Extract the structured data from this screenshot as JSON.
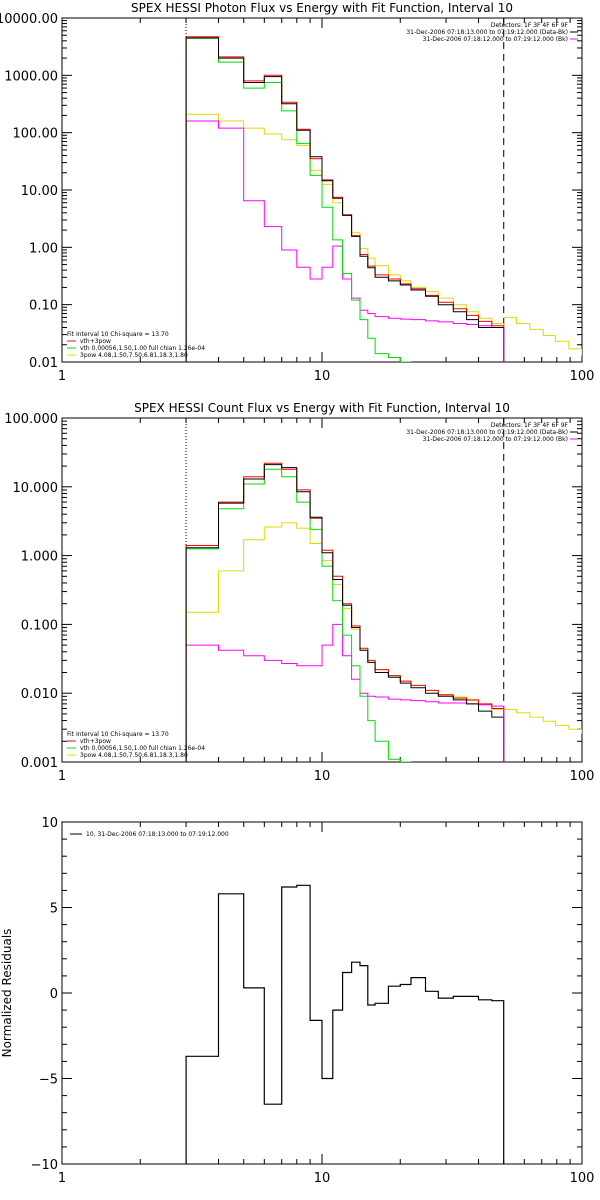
{
  "colors": {
    "data": "#000000",
    "total": "#ff0000",
    "vth": "#00dd00",
    "pow": "#dddd00",
    "bk": "#ff00ff",
    "axis": "#000000"
  },
  "chart_data": [
    {
      "type": "line",
      "title": "SPEX HESSI Photon Flux vs Energy with Fit Function, Interval 10",
      "xlabel": "",
      "ylabel": "",
      "xscale": "log",
      "yscale": "log",
      "xlim": [
        1,
        100
      ],
      "ylim": [
        0.01,
        10000
      ],
      "x_ticks": [
        "1",
        "10",
        "100"
      ],
      "y_ticks": [
        "0.01",
        "0.10",
        "1.00",
        "10.00",
        "100.00",
        "1000.00",
        "10000.00"
      ],
      "y_ticks_vals": [
        0.01,
        0.1,
        1,
        10,
        100,
        1000,
        10000
      ],
      "vlines": [
        {
          "x": 3.0,
          "style": "dotted"
        },
        {
          "x": 50,
          "style": "dashed"
        }
      ],
      "legend_top": [
        "Detectors: 1F 3F 4F 6F 9F",
        "31-Dec-2006 07:18:13.000 to 07:19:12.000 (Data-Bk)",
        "31-Dec-2006 07:18:12.000 to 07:19:12.000 (Bk)"
      ],
      "legend_top_colors": [
        "none",
        "#000000",
        "#ff00ff"
      ],
      "legend_bottom": [
        "Fit Interval 10   Chi-square = 13.70",
        "vth+3pow",
        "vth 0.00056,1.50,1.00  full chian 1.26e-04",
        "3pow 4.08,1.50,7.50,6.81,18.3,1.80"
      ],
      "legend_bottom_colors": [
        "none",
        "#ff0000",
        "#00dd00",
        "#dddd00"
      ],
      "edges": [
        3.0,
        4.0,
        5.0,
        6.0,
        7.0,
        8.0,
        9.0,
        10.0,
        11.0,
        12.0,
        13.0,
        14.0,
        15.0,
        16.0,
        18.0,
        20.0,
        22.0,
        25.0,
        28.0,
        32.0,
        36.0,
        40.0,
        45.0,
        50.0
      ],
      "series": [
        {
          "key": "total",
          "values": [
            4700,
            2100,
            800,
            1000,
            340,
            115,
            35,
            15,
            7.5,
            3.7,
            1.6,
            0.75,
            0.47,
            0.33,
            0.28,
            0.23,
            0.19,
            0.145,
            0.11,
            0.085,
            0.065,
            0.051,
            0.043
          ]
        },
        {
          "key": "data",
          "values": [
            4500,
            2000,
            750,
            950,
            320,
            110,
            38,
            14.5,
            7.2,
            3.6,
            1.55,
            0.7,
            0.44,
            0.3,
            0.26,
            0.22,
            0.18,
            0.14,
            0.1,
            0.075,
            0.055,
            0.04,
            0.04
          ]
        },
        {
          "key": "vth",
          "values": [
            4400,
            1700,
            600,
            750,
            240,
            65,
            18,
            5.0,
            1.35,
            0.35,
            0.12,
            0.055,
            0.026,
            0.014,
            0.012,
            0.01
          ]
        },
        {
          "key": "pow",
          "values": [
            210,
            160,
            120,
            95,
            75,
            60,
            22,
            12.5,
            6.0,
            3.7,
            1.8,
            0.95,
            0.65,
            0.48,
            0.33,
            0.26,
            0.2,
            0.17,
            0.13,
            0.1,
            0.075,
            0.058,
            0.047
          ]
        },
        {
          "key": "bk",
          "values": [
            160,
            120,
            6.5,
            2.3,
            0.9,
            0.45,
            0.28,
            0.45,
            1.05,
            0.28,
            0.13,
            0.08,
            0.07,
            0.062,
            0.058,
            0.056,
            0.055,
            0.052,
            0.05,
            0.047,
            0.045,
            0.043,
            0.04
          ]
        }
      ],
      "pow_tail": [
        [
          50,
          0.06
        ],
        [
          56,
          0.047
        ],
        [
          63,
          0.037
        ],
        [
          71,
          0.029
        ],
        [
          79,
          0.023
        ],
        [
          89,
          0.017
        ],
        [
          100,
          0.013
        ]
      ]
    },
    {
      "type": "line",
      "title": "SPEX HESSI Count Flux vs Energy with Fit Function, Interval 10",
      "xlabel": "",
      "ylabel": "",
      "xscale": "log",
      "yscale": "log",
      "xlim": [
        1,
        100
      ],
      "ylim": [
        0.001,
        100
      ],
      "x_ticks": [
        "1",
        "10",
        "100"
      ],
      "y_ticks": [
        "0.001",
        "0.010",
        "0.100",
        "1.000",
        "10.000",
        "100.000"
      ],
      "y_ticks_vals": [
        0.001,
        0.01,
        0.1,
        1,
        10,
        100
      ],
      "vlines": [
        {
          "x": 3.0,
          "style": "dotted"
        },
        {
          "x": 50,
          "style": "dashed"
        }
      ],
      "legend_top": [
        "Detectors: 1F 3F 4F 6F 9F",
        "31-Dec-2006 07:18:13.000 to 07:19:12.000 (Data-Bk)",
        "31-Dec-2006 07:18:12.000 to 07:19:12.000 (Bk)"
      ],
      "legend_top_colors": [
        "none",
        "#000000",
        "#ff00ff"
      ],
      "legend_bottom": [
        "Fit Interval 10   Chi-square = 13.70",
        "vth+3pow",
        "vth 0.00056,1.50,1.00  full chian 1.26e-04",
        "3pow 4.08,1.50,7.50,6.81,18.3,1.80"
      ],
      "legend_bottom_colors": [
        "none",
        "#ff0000",
        "#00dd00",
        "#dddd00"
      ],
      "edges": [
        3.0,
        4.0,
        5.0,
        6.0,
        7.0,
        8.0,
        9.0,
        10.0,
        11.0,
        12.0,
        13.0,
        14.0,
        15.0,
        16.0,
        18.0,
        20.0,
        22.0,
        25.0,
        28.0,
        32.0,
        36.0,
        40.0,
        45.0,
        50.0
      ],
      "series": [
        {
          "key": "total",
          "values": [
            1.4,
            6.0,
            14,
            22,
            18,
            9,
            3.5,
            1.2,
            0.5,
            0.2,
            0.095,
            0.045,
            0.03,
            0.022,
            0.018,
            0.015,
            0.013,
            0.011,
            0.0095,
            0.0085,
            0.008,
            0.007,
            0.006
          ]
        },
        {
          "key": "data",
          "values": [
            1.3,
            5.8,
            13,
            21,
            19,
            8.5,
            3.6,
            1.1,
            0.45,
            0.19,
            0.09,
            0.042,
            0.028,
            0.02,
            0.017,
            0.014,
            0.012,
            0.01,
            0.009,
            0.008,
            0.007,
            0.0055,
            0.0045
          ]
        },
        {
          "key": "vth",
          "values": [
            1.25,
            4.8,
            11,
            18,
            14,
            6.0,
            2.4,
            0.7,
            0.22,
            0.07,
            0.025,
            0.009,
            0.004,
            0.002,
            0.0011,
            0.001
          ]
        },
        {
          "key": "pow",
          "values": [
            0.15,
            0.6,
            1.7,
            2.6,
            3.0,
            2.5,
            1.5,
            0.85,
            0.38,
            0.17,
            0.085,
            0.042,
            0.028,
            0.022,
            0.018,
            0.015,
            0.013,
            0.011,
            0.0095,
            0.0088,
            0.0078,
            0.0068,
            0.0058
          ]
        },
        {
          "key": "bk",
          "values": [
            0.05,
            0.042,
            0.035,
            0.03,
            0.027,
            0.025,
            0.025,
            0.05,
            0.1,
            0.035,
            0.016,
            0.01,
            0.009,
            0.0088,
            0.0082,
            0.008,
            0.0078,
            0.0075,
            0.0072,
            0.0072,
            0.007,
            0.0068,
            0.0065
          ]
        }
      ],
      "pow_tail": [
        [
          50,
          0.0058
        ],
        [
          56,
          0.0052
        ],
        [
          63,
          0.0045
        ],
        [
          71,
          0.0039
        ],
        [
          79,
          0.0034
        ],
        [
          89,
          0.003
        ],
        [
          100,
          0.0026
        ]
      ]
    },
    {
      "type": "line",
      "title": "",
      "xlabel": "",
      "ylabel": "Normalized Residuals",
      "xscale": "log",
      "yscale": "linear",
      "xlim": [
        1,
        100
      ],
      "ylim": [
        -10,
        10
      ],
      "x_ticks": [
        "1",
        "10",
        "100"
      ],
      "y_ticks": [
        "-10",
        "-5",
        "0",
        "5",
        "10"
      ],
      "y_ticks_vals": [
        -10,
        -5,
        0,
        5,
        10
      ],
      "legend": "10. 31-Dec-2006 07:18:13.000 to 07:19:12.000",
      "edges": [
        3.0,
        4.0,
        5.0,
        6.0,
        7.0,
        8.0,
        9.0,
        10.0,
        11.0,
        12.0,
        13.0,
        14.0,
        15.0,
        16.0,
        18.0,
        20.0,
        22.0,
        25.0,
        28.0,
        32.0,
        36.0,
        40.0,
        45.0,
        50.0
      ],
      "values": [
        -3.7,
        5.8,
        0.3,
        -6.5,
        6.2,
        6.3,
        -1.6,
        -5.0,
        -1.0,
        1.2,
        1.8,
        1.6,
        -0.7,
        -0.6,
        0.4,
        0.5,
        0.9,
        0.1,
        -0.3,
        -0.2,
        -0.2,
        -0.4,
        -0.45
      ]
    }
  ]
}
